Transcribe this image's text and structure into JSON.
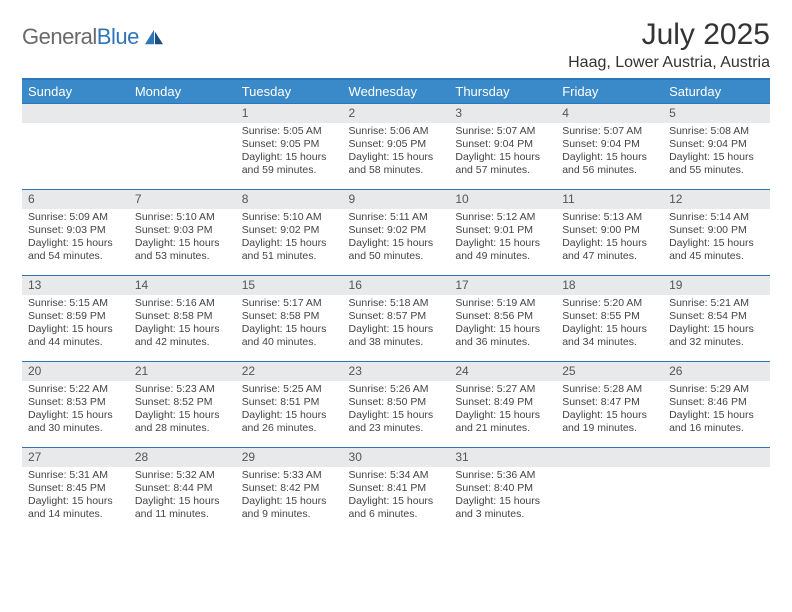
{
  "brand": {
    "name_part1": "General",
    "name_part2": "Blue"
  },
  "title": "July 2025",
  "location": "Haag, Lower Austria, Austria",
  "colors": {
    "header_bg": "#3a8ac9",
    "rule": "#2f76b8",
    "daynum_bg": "#e7e9ea",
    "text": "#444444",
    "logo_gray": "#6a6a6a",
    "logo_blue": "#2f76b8"
  },
  "weekdays": [
    "Sunday",
    "Monday",
    "Tuesday",
    "Wednesday",
    "Thursday",
    "Friday",
    "Saturday"
  ],
  "layout": {
    "first_weekday_index": 2,
    "days_in_month": 31,
    "rows": 5,
    "cols": 7
  },
  "days": {
    "1": {
      "sunrise": "Sunrise: 5:05 AM",
      "sunset": "Sunset: 9:05 PM",
      "daylight": "Daylight: 15 hours and 59 minutes."
    },
    "2": {
      "sunrise": "Sunrise: 5:06 AM",
      "sunset": "Sunset: 9:05 PM",
      "daylight": "Daylight: 15 hours and 58 minutes."
    },
    "3": {
      "sunrise": "Sunrise: 5:07 AM",
      "sunset": "Sunset: 9:04 PM",
      "daylight": "Daylight: 15 hours and 57 minutes."
    },
    "4": {
      "sunrise": "Sunrise: 5:07 AM",
      "sunset": "Sunset: 9:04 PM",
      "daylight": "Daylight: 15 hours and 56 minutes."
    },
    "5": {
      "sunrise": "Sunrise: 5:08 AM",
      "sunset": "Sunset: 9:04 PM",
      "daylight": "Daylight: 15 hours and 55 minutes."
    },
    "6": {
      "sunrise": "Sunrise: 5:09 AM",
      "sunset": "Sunset: 9:03 PM",
      "daylight": "Daylight: 15 hours and 54 minutes."
    },
    "7": {
      "sunrise": "Sunrise: 5:10 AM",
      "sunset": "Sunset: 9:03 PM",
      "daylight": "Daylight: 15 hours and 53 minutes."
    },
    "8": {
      "sunrise": "Sunrise: 5:10 AM",
      "sunset": "Sunset: 9:02 PM",
      "daylight": "Daylight: 15 hours and 51 minutes."
    },
    "9": {
      "sunrise": "Sunrise: 5:11 AM",
      "sunset": "Sunset: 9:02 PM",
      "daylight": "Daylight: 15 hours and 50 minutes."
    },
    "10": {
      "sunrise": "Sunrise: 5:12 AM",
      "sunset": "Sunset: 9:01 PM",
      "daylight": "Daylight: 15 hours and 49 minutes."
    },
    "11": {
      "sunrise": "Sunrise: 5:13 AM",
      "sunset": "Sunset: 9:00 PM",
      "daylight": "Daylight: 15 hours and 47 minutes."
    },
    "12": {
      "sunrise": "Sunrise: 5:14 AM",
      "sunset": "Sunset: 9:00 PM",
      "daylight": "Daylight: 15 hours and 45 minutes."
    },
    "13": {
      "sunrise": "Sunrise: 5:15 AM",
      "sunset": "Sunset: 8:59 PM",
      "daylight": "Daylight: 15 hours and 44 minutes."
    },
    "14": {
      "sunrise": "Sunrise: 5:16 AM",
      "sunset": "Sunset: 8:58 PM",
      "daylight": "Daylight: 15 hours and 42 minutes."
    },
    "15": {
      "sunrise": "Sunrise: 5:17 AM",
      "sunset": "Sunset: 8:58 PM",
      "daylight": "Daylight: 15 hours and 40 minutes."
    },
    "16": {
      "sunrise": "Sunrise: 5:18 AM",
      "sunset": "Sunset: 8:57 PM",
      "daylight": "Daylight: 15 hours and 38 minutes."
    },
    "17": {
      "sunrise": "Sunrise: 5:19 AM",
      "sunset": "Sunset: 8:56 PM",
      "daylight": "Daylight: 15 hours and 36 minutes."
    },
    "18": {
      "sunrise": "Sunrise: 5:20 AM",
      "sunset": "Sunset: 8:55 PM",
      "daylight": "Daylight: 15 hours and 34 minutes."
    },
    "19": {
      "sunrise": "Sunrise: 5:21 AM",
      "sunset": "Sunset: 8:54 PM",
      "daylight": "Daylight: 15 hours and 32 minutes."
    },
    "20": {
      "sunrise": "Sunrise: 5:22 AM",
      "sunset": "Sunset: 8:53 PM",
      "daylight": "Daylight: 15 hours and 30 minutes."
    },
    "21": {
      "sunrise": "Sunrise: 5:23 AM",
      "sunset": "Sunset: 8:52 PM",
      "daylight": "Daylight: 15 hours and 28 minutes."
    },
    "22": {
      "sunrise": "Sunrise: 5:25 AM",
      "sunset": "Sunset: 8:51 PM",
      "daylight": "Daylight: 15 hours and 26 minutes."
    },
    "23": {
      "sunrise": "Sunrise: 5:26 AM",
      "sunset": "Sunset: 8:50 PM",
      "daylight": "Daylight: 15 hours and 23 minutes."
    },
    "24": {
      "sunrise": "Sunrise: 5:27 AM",
      "sunset": "Sunset: 8:49 PM",
      "daylight": "Daylight: 15 hours and 21 minutes."
    },
    "25": {
      "sunrise": "Sunrise: 5:28 AM",
      "sunset": "Sunset: 8:47 PM",
      "daylight": "Daylight: 15 hours and 19 minutes."
    },
    "26": {
      "sunrise": "Sunrise: 5:29 AM",
      "sunset": "Sunset: 8:46 PM",
      "daylight": "Daylight: 15 hours and 16 minutes."
    },
    "27": {
      "sunrise": "Sunrise: 5:31 AM",
      "sunset": "Sunset: 8:45 PM",
      "daylight": "Daylight: 15 hours and 14 minutes."
    },
    "28": {
      "sunrise": "Sunrise: 5:32 AM",
      "sunset": "Sunset: 8:44 PM",
      "daylight": "Daylight: 15 hours and 11 minutes."
    },
    "29": {
      "sunrise": "Sunrise: 5:33 AM",
      "sunset": "Sunset: 8:42 PM",
      "daylight": "Daylight: 15 hours and 9 minutes."
    },
    "30": {
      "sunrise": "Sunrise: 5:34 AM",
      "sunset": "Sunset: 8:41 PM",
      "daylight": "Daylight: 15 hours and 6 minutes."
    },
    "31": {
      "sunrise": "Sunrise: 5:36 AM",
      "sunset": "Sunset: 8:40 PM",
      "daylight": "Daylight: 15 hours and 3 minutes."
    }
  }
}
